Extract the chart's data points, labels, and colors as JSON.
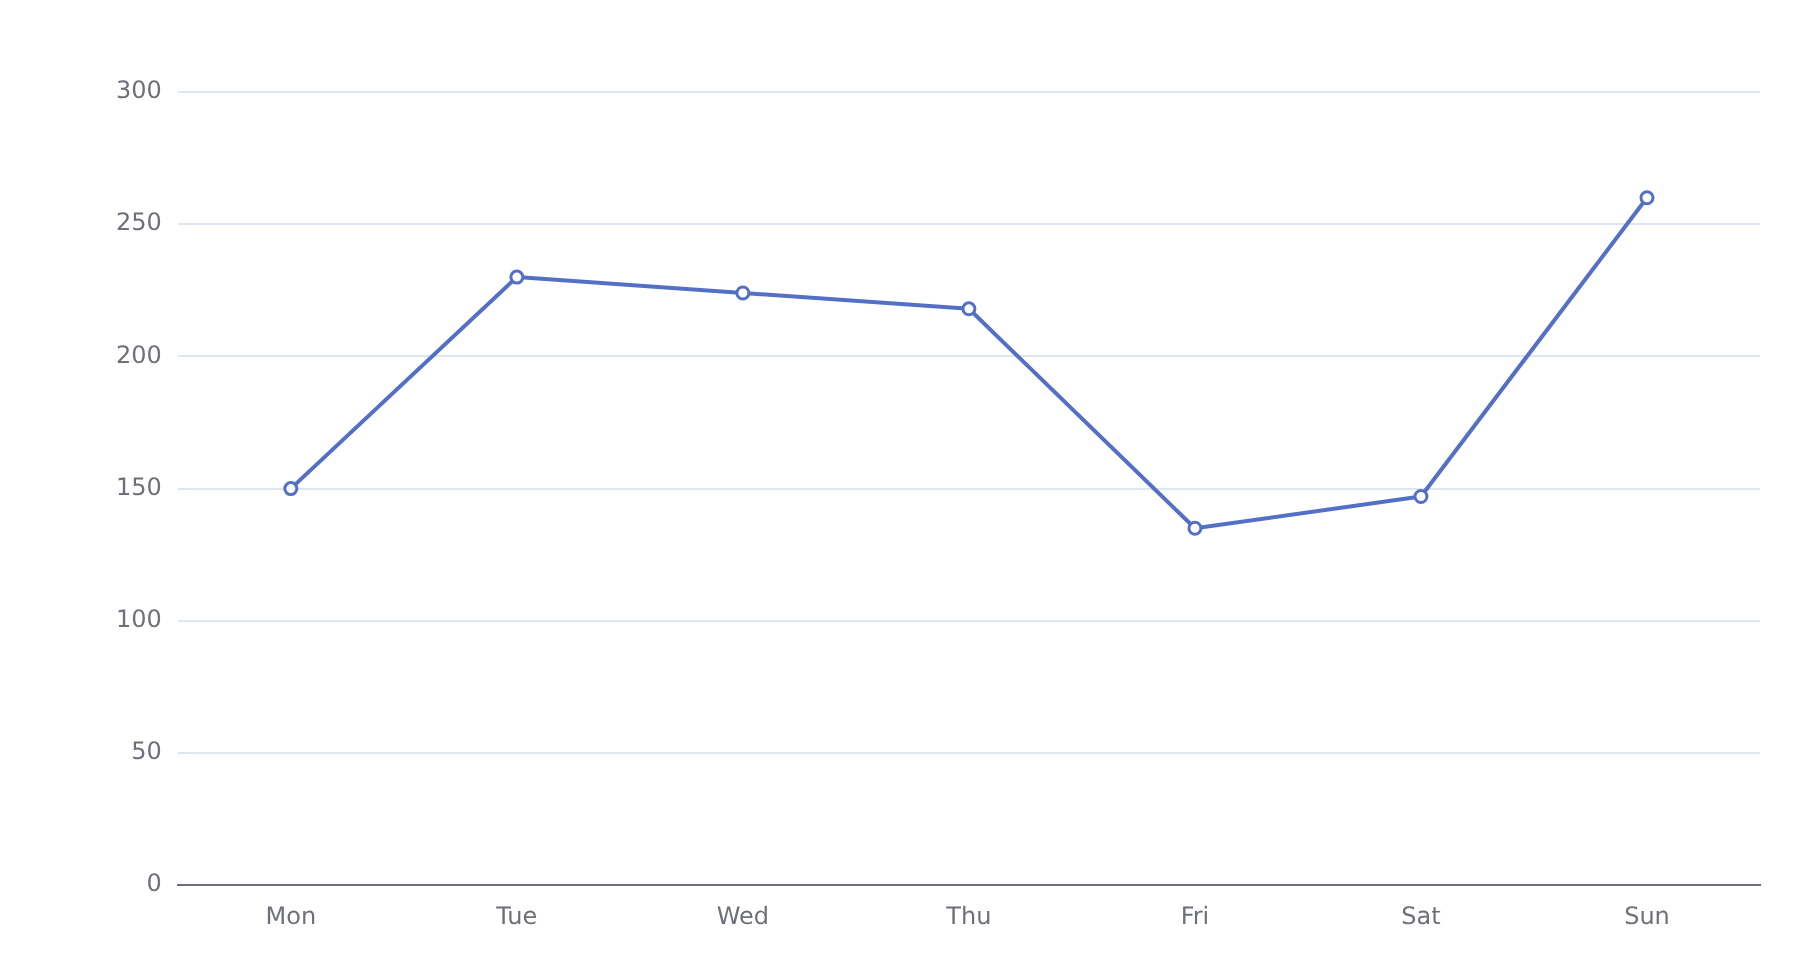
{
  "chart_data": {
    "type": "line",
    "categories": [
      "Mon",
      "Tue",
      "Wed",
      "Thu",
      "Fri",
      "Sat",
      "Sun"
    ],
    "series": [
      {
        "color": "#5470c6",
        "values": [
          150,
          230,
          224,
          218,
          135,
          147,
          260
        ]
      }
    ],
    "ylim": [
      0,
      300
    ],
    "yticks": [
      0,
      50,
      100,
      150,
      200,
      250,
      300
    ],
    "grid": "y",
    "legend": false,
    "marker": "circle",
    "line_style": "solid"
  }
}
